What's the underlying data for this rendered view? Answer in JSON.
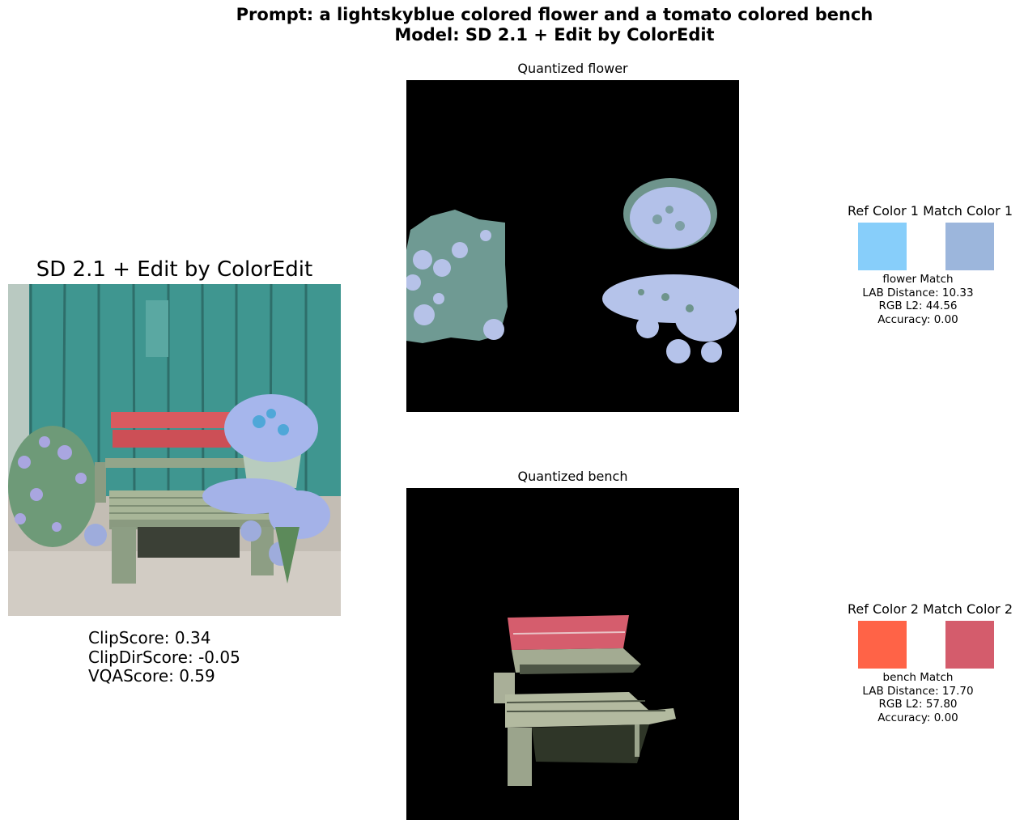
{
  "figure": {
    "title_line1": "Prompt: a lightskyblue colored flower and a tomato colored bench",
    "title_line2": "Model: SD 2.1 + Edit by ColorEdit"
  },
  "generated": {
    "title": "SD 2.1 + Edit by ColorEdit",
    "image": "generated-image",
    "scores": {
      "clip": "ClipScore: 0.34",
      "clipdir": "ClipDirScore: -0.05",
      "vqa": "VQAScore: 0.59"
    }
  },
  "panels": {
    "flower": {
      "title": "Quantized flower",
      "swatch_header": "Ref Color 1 Match Color 1",
      "ref_color": "#87cefa",
      "match_color": "#9cb6dc",
      "match_title": "flower Match",
      "lab": "LAB Distance: 10.33",
      "rgb": "RGB L2: 44.56",
      "acc": "Accuracy: 0.00"
    },
    "bench": {
      "title": "Quantized bench",
      "swatch_header": "Ref Color 2 Match Color 2",
      "ref_color": "#ff6347",
      "match_color": "#d45c6c",
      "match_title": "bench Match",
      "lab": "LAB Distance: 17.70",
      "rgb": "RGB L2: 57.80",
      "acc": "Accuracy: 0.00"
    }
  }
}
